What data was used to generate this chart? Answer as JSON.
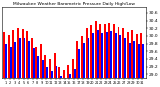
{
  "title": "Milwaukee Weather Barometric Pressure Daily High/Low",
  "bar_color_high": "#ff0000",
  "bar_color_low": "#0000ff",
  "background_color": "#ffffff",
  "ylim_min": 28.9,
  "ylim_max": 30.75,
  "yticks": [
    29.0,
    29.2,
    29.4,
    29.6,
    29.8,
    30.0,
    30.2,
    30.4,
    30.6
  ],
  "n_days": 31,
  "highs": [
    30.1,
    30.02,
    30.15,
    30.2,
    30.18,
    30.12,
    29.95,
    29.72,
    29.8,
    29.5,
    29.4,
    29.55,
    29.18,
    29.1,
    29.25,
    29.4,
    29.88,
    30.0,
    30.2,
    30.28,
    30.38,
    30.3,
    30.32,
    30.35,
    30.3,
    30.22,
    30.2,
    30.1,
    30.15,
    30.05,
    30.08
  ],
  "lows": [
    29.8,
    29.7,
    29.85,
    29.95,
    29.95,
    29.88,
    29.68,
    29.48,
    29.38,
    29.2,
    29.08,
    29.22,
    28.95,
    28.88,
    29.02,
    29.15,
    29.65,
    29.82,
    29.95,
    30.08,
    30.15,
    30.08,
    30.1,
    30.12,
    30.08,
    30.02,
    29.95,
    29.82,
    29.88,
    29.78,
    29.8
  ]
}
